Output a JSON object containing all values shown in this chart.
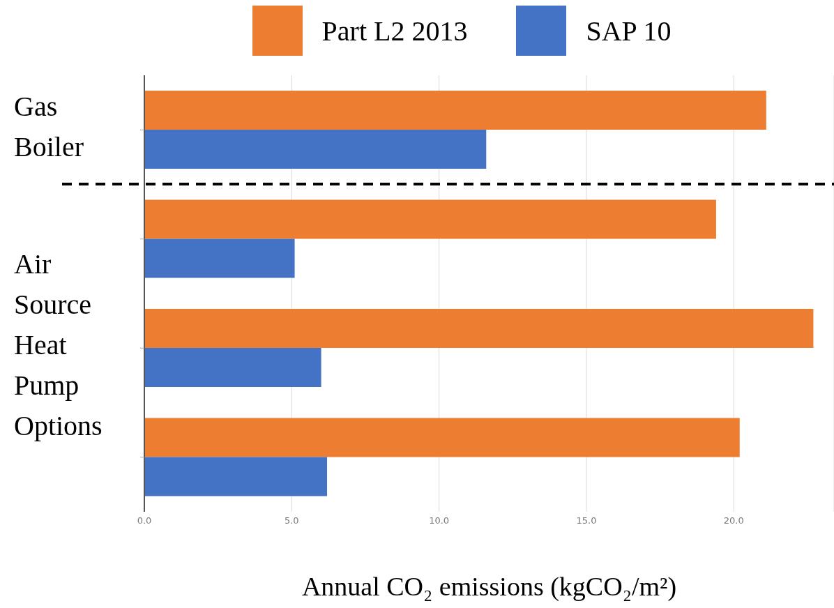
{
  "chart_data": {
    "type": "bar",
    "orientation": "horizontal",
    "xlabel": "Annual CO₂ emissions  (kgCO₂/m²)",
    "categories": [
      "Gas Boiler",
      null,
      "Air Source Heat Pump Options",
      null
    ],
    "series": [
      {
        "name": "Part L2 2013",
        "color": "#ed7d31",
        "values": [
          21.1,
          19.4,
          22.7,
          20.2
        ]
      },
      {
        "name": "SAP 10",
        "color": "#4472c4",
        "values": [
          11.6,
          5.1,
          6.0,
          6.2
        ]
      }
    ],
    "xlim": [
      0,
      23.4
    ],
    "xticks": [
      {
        "value": 0,
        "label": "0.0"
      },
      {
        "value": 5,
        "label": "5.0"
      },
      {
        "value": 10,
        "label": "10.0"
      },
      {
        "value": 15,
        "label": "15.0"
      },
      {
        "value": 20,
        "label": "20.0"
      }
    ],
    "grid": "x",
    "legend": "top"
  }
}
